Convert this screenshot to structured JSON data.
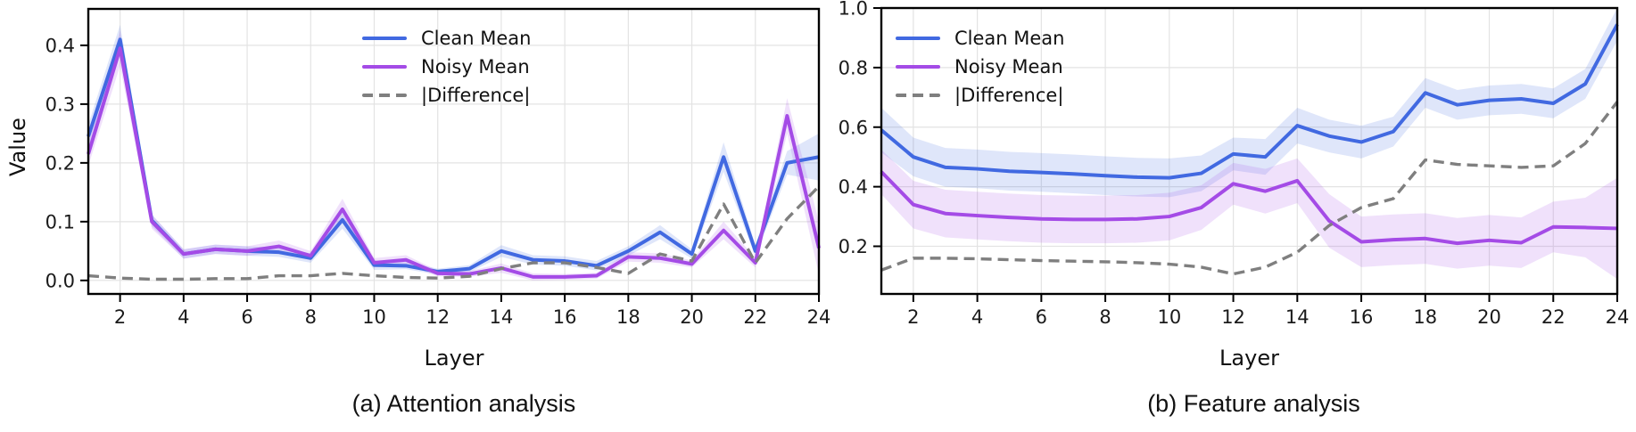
{
  "figure": {
    "colors": {
      "clean": "#4169E1",
      "noisy": "#A44BE6",
      "difference": "#7f7f7f",
      "grid": "#e3e3e3",
      "spine": "#000000"
    }
  },
  "chart_data": [
    {
      "id": "attention",
      "type": "line",
      "caption": "(a) Attention analysis",
      "xlabel": "Layer",
      "ylabel": "Value",
      "xlim": [
        1,
        24
      ],
      "ylim": [
        -0.023,
        0.462
      ],
      "x": [
        1,
        2,
        3,
        4,
        5,
        6,
        7,
        8,
        9,
        10,
        11,
        12,
        13,
        14,
        15,
        16,
        17,
        18,
        19,
        20,
        21,
        22,
        23,
        24
      ],
      "xticks": [
        2,
        4,
        6,
        8,
        10,
        12,
        14,
        16,
        18,
        20,
        22,
        24
      ],
      "xtick_labels": [
        "2",
        "4",
        "6",
        "8",
        "10",
        "12",
        "14",
        "16",
        "18",
        "20",
        "22",
        "24"
      ],
      "yticks": [
        0.0,
        0.1,
        0.2,
        0.3,
        0.4
      ],
      "ytick_labels": [
        "0.0",
        "0.1",
        "0.2",
        "0.3",
        "0.4"
      ],
      "grid": true,
      "legend_position": "upper-center",
      "series": [
        {
          "name": "Clean Mean",
          "color_key": "clean",
          "style": "solid",
          "values": [
            0.245,
            0.41,
            0.102,
            0.045,
            0.053,
            0.05,
            0.048,
            0.038,
            0.103,
            0.026,
            0.025,
            0.015,
            0.02,
            0.05,
            0.035,
            0.033,
            0.025,
            0.05,
            0.082,
            0.045,
            0.21,
            0.05,
            0.2,
            0.21
          ],
          "band": [
            0.02,
            0.025,
            0.01,
            0.008,
            0.008,
            0.008,
            0.008,
            0.008,
            0.015,
            0.008,
            0.006,
            0.005,
            0.006,
            0.01,
            0.008,
            0.008,
            0.008,
            0.008,
            0.012,
            0.008,
            0.025,
            0.01,
            0.02,
            0.04
          ]
        },
        {
          "name": "Noisy Mean",
          "color_key": "noisy",
          "style": "solid",
          "values": [
            0.215,
            0.395,
            0.1,
            0.045,
            0.053,
            0.05,
            0.058,
            0.042,
            0.121,
            0.03,
            0.035,
            0.012,
            0.011,
            0.021,
            0.006,
            0.006,
            0.008,
            0.04,
            0.038,
            0.028,
            0.085,
            0.03,
            0.28,
            0.055
          ],
          "band": [
            0.02,
            0.03,
            0.012,
            0.008,
            0.008,
            0.008,
            0.01,
            0.008,
            0.018,
            0.008,
            0.008,
            0.005,
            0.005,
            0.008,
            0.006,
            0.005,
            0.005,
            0.008,
            0.008,
            0.006,
            0.015,
            0.008,
            0.03,
            0.045
          ]
        },
        {
          "name": "|Difference|",
          "color_key": "difference",
          "style": "dashed",
          "values": [
            0.008,
            0.004,
            0.002,
            0.002,
            0.003,
            0.003,
            0.008,
            0.008,
            0.012,
            0.008,
            0.005,
            0.004,
            0.007,
            0.02,
            0.03,
            0.03,
            0.022,
            0.012,
            0.045,
            0.033,
            0.13,
            0.03,
            0.105,
            0.16
          ]
        }
      ]
    },
    {
      "id": "feature",
      "type": "line",
      "caption": "(b) Feature analysis",
      "xlabel": "Layer",
      "ylabel": "",
      "xlim": [
        1,
        24
      ],
      "ylim": [
        0.04,
        1.0
      ],
      "x": [
        1,
        2,
        3,
        4,
        5,
        6,
        7,
        8,
        9,
        10,
        11,
        12,
        13,
        14,
        15,
        16,
        17,
        18,
        19,
        20,
        21,
        22,
        23,
        24
      ],
      "xticks": [
        2,
        4,
        6,
        8,
        10,
        12,
        14,
        16,
        18,
        20,
        22,
        24
      ],
      "xtick_labels": [
        "2",
        "4",
        "6",
        "8",
        "10",
        "12",
        "14",
        "16",
        "18",
        "20",
        "22",
        "24"
      ],
      "yticks": [
        0.2,
        0.4,
        0.6,
        0.8,
        1.0
      ],
      "ytick_labels": [
        "0.2",
        "0.4",
        "0.6",
        "0.8",
        "1.0"
      ],
      "grid": true,
      "legend_position": "upper-left",
      "series": [
        {
          "name": "Clean Mean",
          "color_key": "clean",
          "style": "solid",
          "values": [
            0.59,
            0.5,
            0.465,
            0.46,
            0.452,
            0.448,
            0.443,
            0.437,
            0.432,
            0.43,
            0.445,
            0.51,
            0.5,
            0.605,
            0.57,
            0.55,
            0.585,
            0.715,
            0.675,
            0.69,
            0.695,
            0.68,
            0.745,
            0.945
          ],
          "band": [
            0.075,
            0.065,
            0.065,
            0.065,
            0.065,
            0.065,
            0.065,
            0.065,
            0.065,
            0.065,
            0.06,
            0.055,
            0.06,
            0.06,
            0.055,
            0.055,
            0.05,
            0.05,
            0.05,
            0.05,
            0.05,
            0.05,
            0.05,
            0.055
          ]
        },
        {
          "name": "Noisy Mean",
          "color_key": "noisy",
          "style": "solid",
          "values": [
            0.45,
            0.34,
            0.31,
            0.303,
            0.297,
            0.292,
            0.29,
            0.29,
            0.292,
            0.3,
            0.33,
            0.41,
            0.385,
            0.42,
            0.285,
            0.215,
            0.222,
            0.226,
            0.21,
            0.22,
            0.212,
            0.265,
            0.263,
            0.26
          ],
          "band": [
            0.075,
            0.08,
            0.08,
            0.08,
            0.08,
            0.08,
            0.08,
            0.08,
            0.08,
            0.08,
            0.075,
            0.07,
            0.075,
            0.075,
            0.09,
            0.085,
            0.085,
            0.085,
            0.085,
            0.085,
            0.085,
            0.085,
            0.1,
            0.17
          ]
        },
        {
          "name": "|Difference|",
          "color_key": "difference",
          "style": "dashed",
          "values": [
            0.12,
            0.16,
            0.16,
            0.158,
            0.155,
            0.152,
            0.15,
            0.148,
            0.145,
            0.14,
            0.13,
            0.107,
            0.13,
            0.18,
            0.27,
            0.33,
            0.36,
            0.49,
            0.475,
            0.47,
            0.465,
            0.47,
            0.545,
            0.685
          ]
        }
      ]
    }
  ]
}
